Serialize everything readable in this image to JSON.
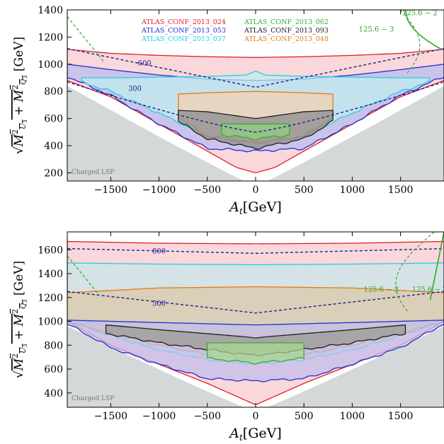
{
  "chart_data": [
    {
      "type": "area",
      "panel": "top",
      "xlabel": "A_t[GeV]",
      "ylabel": "sqrt(M^2_U3 + M^2_Q3) [GeV]",
      "xlim": [
        -1950,
        1950
      ],
      "ylim": [
        140,
        1400
      ],
      "xticks": [
        -1500,
        -1000,
        -500,
        0,
        500,
        1000,
        1500
      ],
      "yticks": [
        200,
        400,
        600,
        800,
        1000,
        1200,
        1400
      ],
      "legend": [
        "ATLAS_CONF_2013_024",
        "ATLAS_CONF_2013_053",
        "ATLAS_CONF_2013_037",
        "ATLAS_CONF_2013_062",
        "ATLAS_CONF_2013_093",
        "ATLAS_CONF_2013_048"
      ],
      "legend_colors": [
        "#e0202a",
        "#2030d0",
        "#20d0e0",
        "#30b030",
        "#202020",
        "#e87a10"
      ],
      "region_label": "Charged LSP",
      "contour_labels": [
        {
          "text": "600",
          "x": -1150,
          "y": 990
        },
        {
          "text": "300",
          "x": -1250,
          "y": 805
        },
        {
          "text": "125.6 − 2",
          "x": 1700,
          "y": 1360
        },
        {
          "text": "125.6 − 3",
          "x": 1250,
          "y": 1240
        }
      ],
      "series": [
        {
          "name": "ATLAS_CONF_2013_024",
          "color": "#e0202a",
          "fill": "#f8c8cc",
          "upper": {
            "x": [
              -1950,
              -1500,
              -1000,
              -500,
              0,
              500,
              1000,
              1500,
              1950
            ],
            "y": [
              1110,
              1080,
              1065,
              1055,
              1050,
              1055,
              1065,
              1080,
              1110
            ]
          },
          "lower": {
            "x": [
              -1950,
              -1500,
              -1000,
              -500,
              -200,
              0,
              200,
              500,
              1000,
              1500,
              1950
            ],
            "y": [
              880,
              760,
              560,
              360,
              240,
              200,
              240,
              360,
              560,
              760,
              880
            ]
          }
        },
        {
          "name": "ATLAS_CONF_2013_053",
          "color": "#2030d0",
          "fill": "#b8bcf0",
          "upper": {
            "x": [
              -1950,
              -1500,
              -1000,
              -500,
              0,
              500,
              1000,
              1500,
              1950
            ],
            "y": [
              1000,
              960,
              920,
              890,
              880,
              890,
              920,
              960,
              1000
            ]
          },
          "lower": {
            "x": [
              -1950,
              -1500,
              -1000,
              -500,
              0,
              500,
              1000,
              1500,
              1950
            ],
            "y": [
              910,
              770,
              560,
              380,
              360,
              380,
              560,
              770,
              910
            ]
          }
        },
        {
          "name": "ATLAS_CONF_2013_037",
          "color": "#20d0e0",
          "fill": "#c0ecf0",
          "upper": {
            "x": [
              -1800,
              -1500,
              -1000,
              -500,
              -100,
              0,
              100,
              500,
              1000,
              1500,
              1800
            ],
            "y": [
              900,
              900,
              905,
              910,
              920,
              950,
              920,
              910,
              905,
              900,
              900
            ]
          },
          "lower": {
            "x": [
              -1800,
              -1500,
              -1000,
              -500,
              0,
              500,
              1000,
              1500,
              1800
            ],
            "y": [
              870,
              800,
              640,
              470,
              430,
              470,
              640,
              800,
              870
            ]
          }
        },
        {
          "name": "ATLAS_CONF_2013_048",
          "color": "#e87a10",
          "fill": "#f2d0b0",
          "upper": {
            "x": [
              -800,
              -500,
              0,
              500,
              800
            ],
            "y": [
              780,
              790,
              800,
              790,
              780
            ]
          },
          "lower": {
            "x": [
              -800,
              -500,
              0,
              500,
              800
            ],
            "y": [
              610,
              470,
              420,
              470,
              610
            ]
          }
        },
        {
          "name": "ATLAS_CONF_2013_093",
          "color": "#202020",
          "fill": "#8a8a8a",
          "upper": {
            "x": [
              -800,
              -500,
              0,
              500,
              800
            ],
            "y": [
              660,
              650,
              600,
              650,
              660
            ]
          },
          "lower": {
            "x": [
              -800,
              -500,
              0,
              500,
              800
            ],
            "y": [
              580,
              450,
              380,
              450,
              580
            ]
          }
        },
        {
          "name": "ATLAS_CONF_2013_062",
          "color": "#30b030",
          "fill": "#90d080",
          "upper": {
            "x": [
              -350,
              0,
              350
            ],
            "y": [
              560,
              560,
              560
            ]
          },
          "lower": {
            "x": [
              -350,
              0,
              350
            ],
            "y": [
              480,
              450,
              480
            ]
          }
        }
      ]
    },
    {
      "type": "area",
      "panel": "bottom",
      "xlabel": "A_t[GeV]",
      "ylabel": "sqrt(M^2_U3 + M^2_Q3) [GeV]",
      "xlim": [
        -1950,
        1950
      ],
      "ylim": [
        280,
        1750
      ],
      "xticks": [
        -1500,
        -1000,
        -500,
        0,
        500,
        1000,
        1500
      ],
      "yticks": [
        400,
        600,
        800,
        1000,
        1200,
        1400,
        1600
      ],
      "region_label": "Charged LSP",
      "contour_labels": [
        {
          "text": "800",
          "x": -1000,
          "y": 1570
        },
        {
          "text": "500",
          "x": -1000,
          "y": 1130
        },
        {
          "text": "125.6 − 3",
          "x": 1300,
          "y": 1250
        },
        {
          "text": "125.6 − 2",
          "x": 1800,
          "y": 1250
        }
      ],
      "series": [
        {
          "name": "ATLAS_CONF_2013_024",
          "color": "#e0202a",
          "fill": "#f8c8cc",
          "upper": {
            "x": [
              -1950,
              -1000,
              0,
              1000,
              1950
            ],
            "y": [
              1670,
              1655,
              1650,
              1655,
              1670
            ]
          },
          "lower": {
            "x": [
              -1950,
              -1500,
              -1000,
              -500,
              0,
              500,
              1000,
              1500,
              1950
            ],
            "y": [
              1000,
              800,
              640,
              480,
              300,
              480,
              640,
              800,
              1000
            ]
          }
        },
        {
          "name": "ATLAS_CONF_2013_037",
          "color": "#20d0e0",
          "fill": "#c6e6ea",
          "upper": {
            "x": [
              -1950,
              -1000,
              0,
              1000,
              1950
            ],
            "y": [
              1490,
              1480,
              1475,
              1480,
              1490
            ]
          },
          "lower": {
            "x": [
              -1950,
              -1500,
              -1000,
              -500,
              0,
              500,
              1000,
              1500,
              1950
            ],
            "y": [
              1000,
              880,
              760,
              680,
              640,
              680,
              760,
              880,
              1000
            ]
          }
        },
        {
          "name": "ATLAS_CONF_2013_048",
          "color": "#e87a10",
          "fill": "#ddc8a8",
          "upper": {
            "x": [
              -1950,
              -1000,
              0,
              1000,
              1950
            ],
            "y": [
              1240,
              1280,
              1290,
              1280,
              1240
            ]
          },
          "lower": {
            "x": [
              -1950,
              -1500,
              -1000,
              -500,
              0,
              500,
              1000,
              1500,
              1950
            ],
            "y": [
              1000,
              900,
              800,
              720,
              680,
              720,
              800,
              900,
              1000
            ]
          }
        },
        {
          "name": "ATLAS_CONF_2013_053",
          "color": "#2030d0",
          "fill": "#c0bcea",
          "upper": {
            "x": [
              -1950,
              -1000,
              0,
              1000,
              1950
            ],
            "y": [
              1010,
              990,
              970,
              990,
              1010
            ]
          },
          "lower": {
            "x": [
              -1950,
              -1500,
              -1000,
              -500,
              0,
              500,
              1000,
              1500,
              1950
            ],
            "y": [
              980,
              780,
              640,
              520,
              500,
              520,
              640,
              780,
              980
            ]
          }
        },
        {
          "name": "ATLAS_CONF_2013_093",
          "color": "#202020",
          "fill": "#9a9a90",
          "upper": {
            "x": [
              -1550,
              -1000,
              -100,
              0,
              100,
              1000,
              1550
            ],
            "y": [
              970,
              930,
              870,
              860,
              870,
              930,
              970
            ]
          },
          "lower": {
            "x": [
              -1550,
              -1000,
              -100,
              0,
              100,
              1000,
              1550
            ],
            "y": [
              900,
              820,
              720,
              720,
              720,
              820,
              900
            ]
          }
        },
        {
          "name": "ATLAS_CONF_2013_062",
          "color": "#30b030",
          "fill": "#a8d890",
          "upper": {
            "x": [
              -500,
              0,
              500
            ],
            "y": [
              820,
              820,
              820
            ]
          },
          "lower": {
            "x": [
              -500,
              0,
              500
            ],
            "y": [
              690,
              650,
              690
            ]
          }
        }
      ]
    }
  ]
}
